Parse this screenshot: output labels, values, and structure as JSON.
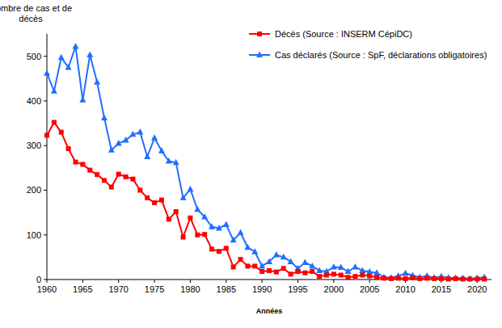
{
  "chart_data": {
    "type": "line",
    "y_label": [
      "Nombre de cas et de",
      "décès"
    ],
    "x_label": "Années",
    "x": [
      1960,
      1961,
      1962,
      1963,
      1964,
      1965,
      1966,
      1967,
      1968,
      1969,
      1970,
      1971,
      1972,
      1973,
      1974,
      1975,
      1976,
      1977,
      1978,
      1979,
      1980,
      1981,
      1982,
      1983,
      1984,
      1985,
      1986,
      1987,
      1988,
      1989,
      1990,
      1991,
      1992,
      1993,
      1994,
      1995,
      1996,
      1997,
      1998,
      1999,
      2000,
      2001,
      2002,
      2003,
      2004,
      2005,
      2006,
      2007,
      2008,
      2009,
      2010,
      2011,
      2012,
      2013,
      2014,
      2015,
      2016,
      2017,
      2018,
      2019,
      2020,
      2021
    ],
    "series": [
      {
        "name": "Décès (Source : INSERM CépiDC)",
        "color": "#ff0000",
        "marker": "square",
        "values": [
          323,
          352,
          330,
          293,
          263,
          258,
          245,
          235,
          222,
          207,
          236,
          230,
          225,
          200,
          183,
          172,
          178,
          135,
          152,
          95,
          138,
          100,
          101,
          68,
          63,
          70,
          28,
          45,
          30,
          30,
          18,
          20,
          17,
          25,
          12,
          18,
          15,
          18,
          7,
          10,
          12,
          10,
          5,
          7,
          10,
          8,
          5,
          3,
          2,
          3,
          2,
          4,
          2,
          3,
          2,
          2,
          1,
          2,
          1,
          1,
          1,
          1
        ]
      },
      {
        "name": "Cas déclarés (Source : SpF, déclarations obligatoires)",
        "color": "#1f6fff",
        "marker": "triangle",
        "values": [
          462,
          422,
          497,
          475,
          522,
          402,
          503,
          442,
          362,
          290,
          305,
          312,
          325,
          330,
          275,
          317,
          288,
          265,
          262,
          183,
          202,
          157,
          140,
          118,
          115,
          123,
          88,
          105,
          72,
          62,
          30,
          40,
          55,
          50,
          40,
          25,
          38,
          30,
          20,
          18,
          28,
          27,
          18,
          28,
          20,
          17,
          15,
          5,
          4,
          8,
          14,
          9,
          5,
          8,
          4,
          7,
          4,
          3,
          3,
          2,
          3,
          5
        ]
      }
    ],
    "xlim": [
      1960,
      2022
    ],
    "xticks": [
      1960,
      1965,
      1970,
      1975,
      1980,
      1985,
      1990,
      1995,
      2000,
      2005,
      2010,
      2015,
      2020
    ],
    "ylim": [
      0,
      550
    ],
    "yticks": [
      0,
      100,
      200,
      300,
      400,
      500
    ],
    "grid": false
  }
}
